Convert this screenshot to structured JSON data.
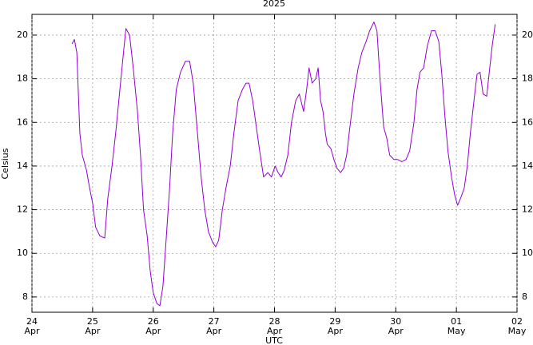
{
  "chart_data": {
    "type": "line",
    "title": "2025",
    "y_label": "Celsius",
    "x_label": "UTC",
    "xlim": [
      0,
      8
    ],
    "ylim": [
      7.3,
      20.95
    ],
    "xticks": [
      {
        "value": 0,
        "label": "24",
        "month": "Apr"
      },
      {
        "value": 1,
        "label": "25",
        "month": "Apr"
      },
      {
        "value": 2,
        "label": "26",
        "month": "Apr"
      },
      {
        "value": 3,
        "label": "27",
        "month": "Apr"
      },
      {
        "value": 4,
        "label": "28",
        "month": "Apr"
      },
      {
        "value": 5,
        "label": "29",
        "month": "Apr"
      },
      {
        "value": 6,
        "label": "30",
        "month": "Apr"
      },
      {
        "value": 7,
        "label": "01",
        "month": "May"
      },
      {
        "value": 8,
        "label": "02",
        "month": "May"
      }
    ],
    "yticks": [
      8,
      10,
      12,
      14,
      16,
      18,
      20
    ],
    "grid": true,
    "right_axis": true,
    "x": [
      0.66,
      0.7,
      0.74,
      0.79,
      0.83,
      0.9,
      0.95,
      1.0,
      1.05,
      1.12,
      1.2,
      1.25,
      1.32,
      1.38,
      1.45,
      1.52,
      1.55,
      1.61,
      1.67,
      1.74,
      1.79,
      1.84,
      1.9,
      1.95,
      2.0,
      2.06,
      2.11,
      2.16,
      2.21,
      2.27,
      2.32,
      2.38,
      2.45,
      2.53,
      2.6,
      2.66,
      2.73,
      2.79,
      2.85,
      2.91,
      2.98,
      3.03,
      3.08,
      3.14,
      3.2,
      3.27,
      3.33,
      3.4,
      3.47,
      3.53,
      3.58,
      3.64,
      3.69,
      3.75,
      3.82,
      3.89,
      3.95,
      4.01,
      4.06,
      4.11,
      4.16,
      4.22,
      4.28,
      4.35,
      4.41,
      4.48,
      4.53,
      4.57,
      4.62,
      4.68,
      4.72,
      4.76,
      4.8,
      4.84,
      4.87,
      4.93,
      4.98,
      5.03,
      5.09,
      5.14,
      5.19,
      5.24,
      5.31,
      5.38,
      5.44,
      5.51,
      5.57,
      5.64,
      5.69,
      5.74,
      5.8,
      5.85,
      5.9,
      5.97,
      6.03,
      6.1,
      6.17,
      6.23,
      6.3,
      6.35,
      6.4,
      6.46,
      6.52,
      6.59,
      6.65,
      6.71,
      6.76,
      6.81,
      6.86,
      6.92,
      6.97,
      7.02,
      7.08,
      7.13,
      7.18,
      7.23,
      7.29,
      7.34,
      7.39,
      7.44,
      7.5,
      7.55,
      7.59,
      7.64
    ],
    "series": [
      {
        "color": "#9400d3",
        "values": [
          19.6,
          19.8,
          19.2,
          15.5,
          14.5,
          13.8,
          13.0,
          12.3,
          11.2,
          10.8,
          10.7,
          12.5,
          14.0,
          15.5,
          17.5,
          19.5,
          20.3,
          20.0,
          18.5,
          16.5,
          14.5,
          12.0,
          10.8,
          9.2,
          8.2,
          7.7,
          7.6,
          8.5,
          10.5,
          13.0,
          15.5,
          17.5,
          18.3,
          18.8,
          18.8,
          17.8,
          15.5,
          13.5,
          12.0,
          11.0,
          10.5,
          10.3,
          10.6,
          12.0,
          13.0,
          14.0,
          15.5,
          17.0,
          17.5,
          17.8,
          17.8,
          17.0,
          16.0,
          14.8,
          13.5,
          13.7,
          13.5,
          14.0,
          13.7,
          13.5,
          13.8,
          14.5,
          16.0,
          17.0,
          17.3,
          16.5,
          17.5,
          18.5,
          17.8,
          18.0,
          18.5,
          17.0,
          16.5,
          15.5,
          15.0,
          14.8,
          14.3,
          13.9,
          13.7,
          13.9,
          14.5,
          15.7,
          17.3,
          18.5,
          19.2,
          19.7,
          20.2,
          20.6,
          20.2,
          18.0,
          15.8,
          15.3,
          14.5,
          14.3,
          14.3,
          14.2,
          14.3,
          14.7,
          16.0,
          17.5,
          18.3,
          18.5,
          19.5,
          20.2,
          20.2,
          19.7,
          18.2,
          16.3,
          14.7,
          13.5,
          12.7,
          12.2,
          12.6,
          13.0,
          14.0,
          15.5,
          17.0,
          18.2,
          18.3,
          17.3,
          17.2,
          18.5,
          19.5,
          20.5
        ]
      }
    ]
  }
}
